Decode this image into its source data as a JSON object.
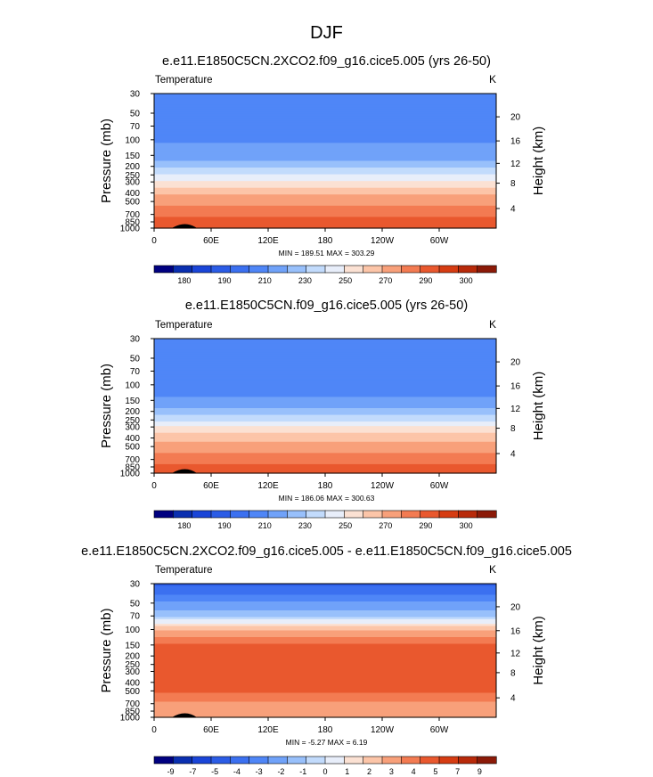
{
  "figure": {
    "title": "DJF"
  },
  "chart_data": [
    {
      "type": "heatmap",
      "title": "e.e11.E1850C5CN.2XCO2.f09_g16.cice5.005 (yrs 26-50)",
      "left_label": "Temperature",
      "right_label": "K",
      "ylabel": "Pressure (mb)",
      "ylabel2": "Height (km)",
      "x_ticks": [
        "0",
        "60E",
        "120E",
        "180",
        "120W",
        "60W"
      ],
      "y_ticks": [
        "30",
        "50",
        "70",
        "100",
        "150",
        "200",
        "250",
        "300",
        "400",
        "500",
        "700",
        "850",
        "1000"
      ],
      "y2_ticks": [
        "20",
        "16",
        "12",
        "8",
        "4"
      ],
      "ylim": [
        1000,
        30
      ],
      "stats": "MIN = 189.51   MAX = 303.29",
      "colorbar": {
        "colors": [
          "#000080",
          "#0a2fb0",
          "#1a45d8",
          "#2b5ce6",
          "#3b70f0",
          "#4f86f7",
          "#70a2f9",
          "#98c0fb",
          "#c2dbfc",
          "#e8eefa",
          "#fbe1d3",
          "#fcc5a8",
          "#f8a07a",
          "#f37b52",
          "#e9582e",
          "#d63c12",
          "#b82a0a",
          "#8b1a08"
        ],
        "labels": [
          "180",
          "190",
          "210",
          "230",
          "250",
          "270",
          "290",
          "300"
        ]
      },
      "profile": [
        {
          "p": 30,
          "v": 210
        },
        {
          "p": 50,
          "v": 211
        },
        {
          "p": 70,
          "v": 212
        },
        {
          "p": 100,
          "v": 213
        },
        {
          "p": 130,
          "v": 216
        },
        {
          "p": 150,
          "v": 219
        },
        {
          "p": 175,
          "v": 223
        },
        {
          "p": 200,
          "v": 229
        },
        {
          "p": 230,
          "v": 236
        },
        {
          "p": 260,
          "v": 243
        },
        {
          "p": 300,
          "v": 251
        },
        {
          "p": 350,
          "v": 259
        },
        {
          "p": 400,
          "v": 265
        },
        {
          "p": 500,
          "v": 271
        },
        {
          "p": 600,
          "v": 277
        },
        {
          "p": 700,
          "v": 282
        },
        {
          "p": 850,
          "v": 287
        },
        {
          "p": 950,
          "v": 290
        },
        {
          "p": 1000,
          "v": 292
        }
      ]
    },
    {
      "type": "heatmap",
      "title": "e.e11.E1850C5CN.f09_g16.cice5.005 (yrs 26-50)",
      "left_label": "Temperature",
      "right_label": "K",
      "ylabel": "Pressure (mb)",
      "ylabel2": "Height (km)",
      "x_ticks": [
        "0",
        "60E",
        "120E",
        "180",
        "120W",
        "60W"
      ],
      "y_ticks": [
        "30",
        "50",
        "70",
        "100",
        "150",
        "200",
        "250",
        "300",
        "400",
        "500",
        "700",
        "850",
        "1000"
      ],
      "y2_ticks": [
        "20",
        "16",
        "12",
        "8",
        "4"
      ],
      "ylim": [
        1000,
        30
      ],
      "stats": "MIN = 186.06   MAX = 300.63",
      "colorbar": {
        "colors": [
          "#000080",
          "#0a2fb0",
          "#1a45d8",
          "#2b5ce6",
          "#3b70f0",
          "#4f86f7",
          "#70a2f9",
          "#98c0fb",
          "#c2dbfc",
          "#e8eefa",
          "#fbe1d3",
          "#fcc5a8",
          "#f8a07a",
          "#f37b52",
          "#e9582e",
          "#d63c12",
          "#b82a0a",
          "#8b1a08"
        ],
        "labels": [
          "180",
          "190",
          "210",
          "230",
          "250",
          "270",
          "290",
          "300"
        ]
      },
      "profile": [
        {
          "p": 30,
          "v": 211
        },
        {
          "p": 50,
          "v": 211
        },
        {
          "p": 70,
          "v": 210
        },
        {
          "p": 100,
          "v": 208
        },
        {
          "p": 130,
          "v": 212
        },
        {
          "p": 150,
          "v": 216
        },
        {
          "p": 175,
          "v": 221
        },
        {
          "p": 200,
          "v": 227
        },
        {
          "p": 230,
          "v": 234
        },
        {
          "p": 260,
          "v": 241
        },
        {
          "p": 300,
          "v": 249
        },
        {
          "p": 350,
          "v": 257
        },
        {
          "p": 400,
          "v": 263
        },
        {
          "p": 500,
          "v": 269
        },
        {
          "p": 600,
          "v": 275
        },
        {
          "p": 700,
          "v": 280
        },
        {
          "p": 850,
          "v": 285
        },
        {
          "p": 950,
          "v": 288
        },
        {
          "p": 1000,
          "v": 290
        }
      ]
    },
    {
      "type": "heatmap",
      "title": "e.e11.E1850C5CN.2XCO2.f09_g16.cice5.005 - e.e11.E1850C5CN.f09_g16.cice5.005",
      "left_label": "Temperature",
      "right_label": "K",
      "ylabel": "Pressure (mb)",
      "ylabel2": "Height (km)",
      "x_ticks": [
        "0",
        "60E",
        "120E",
        "180",
        "120W",
        "60W"
      ],
      "y_ticks": [
        "30",
        "50",
        "70",
        "100",
        "150",
        "200",
        "250",
        "300",
        "400",
        "500",
        "700",
        "850",
        "1000"
      ],
      "y2_ticks": [
        "20",
        "16",
        "12",
        "8",
        "4"
      ],
      "ylim": [
        1000,
        30
      ],
      "stats": "MIN =  -5.27   MAX =   6.19",
      "colorbar": {
        "colors": [
          "#000080",
          "#0a2fb0",
          "#1a45d8",
          "#2b5ce6",
          "#3b70f0",
          "#4f86f7",
          "#70a2f9",
          "#98c0fb",
          "#c2dbfc",
          "#e8eefa",
          "#fbe1d3",
          "#fcc5a8",
          "#f8a07a",
          "#f37b52",
          "#e9582e",
          "#d63c12",
          "#b82a0a",
          "#8b1a08"
        ],
        "labels": [
          "-9",
          "-7",
          "-5",
          "-4",
          "-3",
          "-2",
          "-1",
          "0",
          "1",
          "2",
          "3",
          "4",
          "5",
          "7",
          "9"
        ]
      },
      "profile": [
        {
          "p": 30,
          "v": -4.5
        },
        {
          "p": 40,
          "v": -3.5
        },
        {
          "p": 50,
          "v": -2.5
        },
        {
          "p": 60,
          "v": -1.8
        },
        {
          "p": 70,
          "v": -1.0
        },
        {
          "p": 80,
          "v": 0.5
        },
        {
          "p": 90,
          "v": 1.5
        },
        {
          "p": 100,
          "v": 2.5
        },
        {
          "p": 120,
          "v": 3.5
        },
        {
          "p": 150,
          "v": 4.5
        },
        {
          "p": 200,
          "v": 5.2
        },
        {
          "p": 300,
          "v": 5.5
        },
        {
          "p": 400,
          "v": 5.3
        },
        {
          "p": 500,
          "v": 4.5
        },
        {
          "p": 600,
          "v": 3.8
        },
        {
          "p": 700,
          "v": 3.3
        },
        {
          "p": 850,
          "v": 3.0
        },
        {
          "p": 1000,
          "v": 2.8
        }
      ]
    }
  ]
}
